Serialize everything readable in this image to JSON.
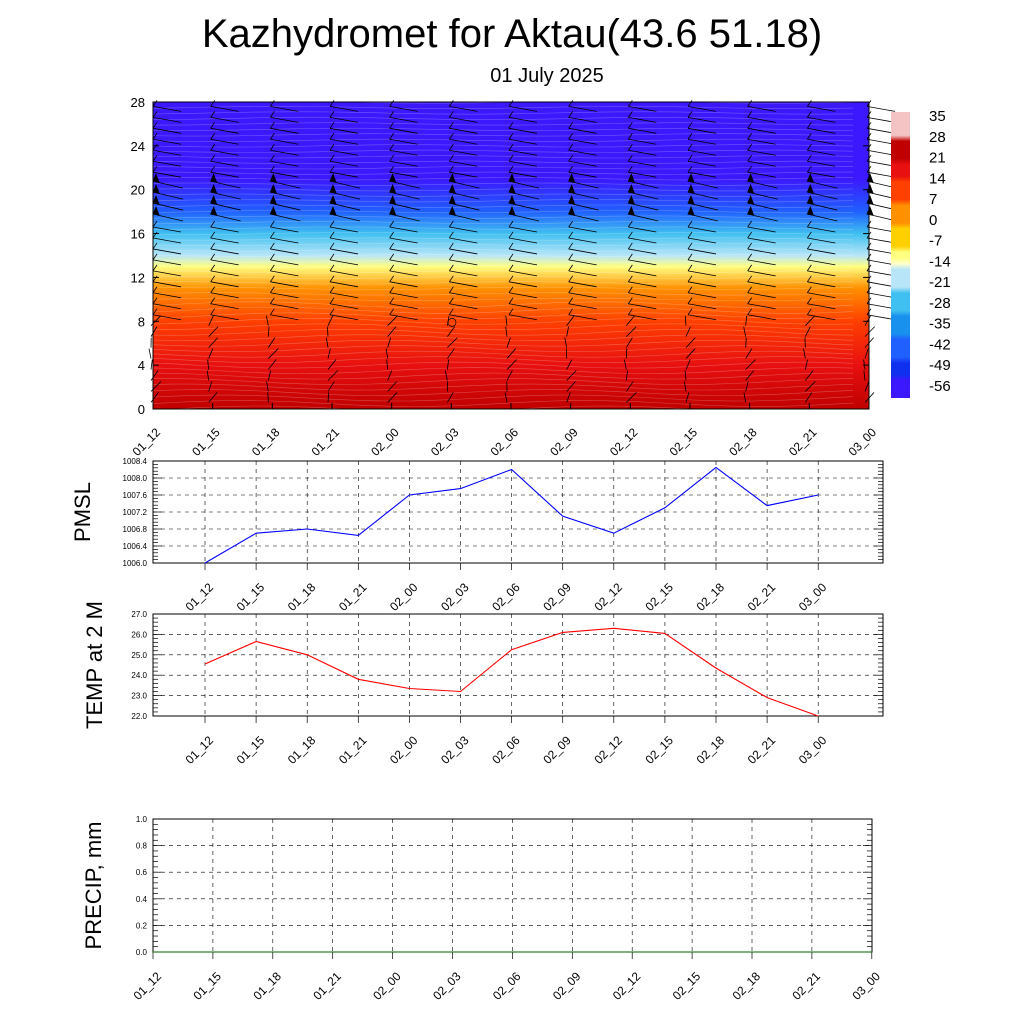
{
  "title": "Kazhydromet for Aktau(43.6 51.18)",
  "subtitle": "01 July 2025",
  "time_labels": [
    "01_12",
    "01_15",
    "01_18",
    "01_21",
    "02_00",
    "02_03",
    "02_06",
    "02_09",
    "02_12",
    "02_15",
    "02_18",
    "02_21",
    "03_00"
  ],
  "chart_data": [
    {
      "type": "heatmap",
      "title": "",
      "xlabel": "",
      "ylabel": "",
      "x": [
        "01_12",
        "01_15",
        "01_18",
        "01_21",
        "02_00",
        "02_03",
        "02_06",
        "02_09",
        "02_12",
        "02_15",
        "02_18",
        "02_21",
        "03_00"
      ],
      "y_ticks": [
        0,
        4,
        8,
        12,
        16,
        20,
        24,
        28
      ],
      "ylim": [
        0,
        28
      ],
      "colorbar_labels": [
        "35",
        "28",
        "21",
        "14",
        "7",
        "0",
        "-7",
        "-14",
        "-21",
        "-28",
        "-35",
        "-42",
        "-49",
        "-56"
      ],
      "wind_barbs": true,
      "temperature_profile": [
        {
          "level": 0,
          "value": 25
        },
        {
          "level": 4,
          "value": 21
        },
        {
          "level": 8,
          "value": 14
        },
        {
          "level": 11,
          "value": 0
        },
        {
          "level": 13,
          "value": -10
        },
        {
          "level": 14,
          "value": -16
        },
        {
          "level": 16,
          "value": -30
        },
        {
          "level": 18,
          "value": -44
        },
        {
          "level": 21,
          "value": -60
        },
        {
          "level": 23,
          "value": -56
        },
        {
          "level": 28,
          "value": -56
        }
      ]
    },
    {
      "type": "line",
      "ylabel": "PMSL",
      "x": [
        "01_12",
        "01_15",
        "01_18",
        "01_21",
        "02_00",
        "02_03",
        "02_06",
        "02_09",
        "02_12",
        "02_15",
        "02_18",
        "02_21",
        "03_00"
      ],
      "ylim": [
        1006.0,
        1008.4
      ],
      "y_ticks": [
        "1006.0",
        "1006.4",
        "1006.8",
        "1007.2",
        "1007.6",
        "1008.0",
        "1008.4"
      ],
      "series": [
        {
          "color": "#0000ff",
          "values": [
            1006.0,
            1006.7,
            1006.8,
            1006.65,
            1007.6,
            1007.75,
            1008.2,
            1007.1,
            1006.7,
            1007.3,
            1008.25,
            1007.35,
            1007.6
          ]
        }
      ],
      "grid": true
    },
    {
      "type": "line",
      "ylabel": "TEMP at 2 M",
      "x": [
        "01_12",
        "01_15",
        "01_18",
        "01_21",
        "02_00",
        "02_03",
        "02_06",
        "02_09",
        "02_12",
        "02_15",
        "02_18",
        "02_21",
        "03_00"
      ],
      "ylim": [
        22.0,
        27.0
      ],
      "y_ticks": [
        "22.0",
        "23.0",
        "24.0",
        "25.0",
        "26.0",
        "27.0"
      ],
      "series": [
        {
          "color": "#ff0000",
          "values": [
            24.55,
            25.65,
            25.0,
            23.8,
            23.35,
            23.2,
            25.25,
            26.1,
            26.3,
            26.05,
            24.35,
            22.9,
            22.0
          ]
        }
      ],
      "grid": true
    },
    {
      "type": "line",
      "ylabel": "PRECIP, mm",
      "x": [
        "01_12",
        "01_15",
        "01_18",
        "01_21",
        "02_00",
        "02_03",
        "02_06",
        "02_09",
        "02_12",
        "02_15",
        "02_18",
        "02_21",
        "03_00"
      ],
      "ylim": [
        0.0,
        1.0
      ],
      "y_ticks": [
        "0.0",
        "0.2",
        "0.4",
        "0.6",
        "0.8",
        "1.0"
      ],
      "series": [
        {
          "color": "#006400",
          "values": [
            0,
            0,
            0,
            0,
            0,
            0,
            0,
            0,
            0,
            0,
            0,
            0,
            0
          ]
        }
      ],
      "grid": true
    }
  ]
}
